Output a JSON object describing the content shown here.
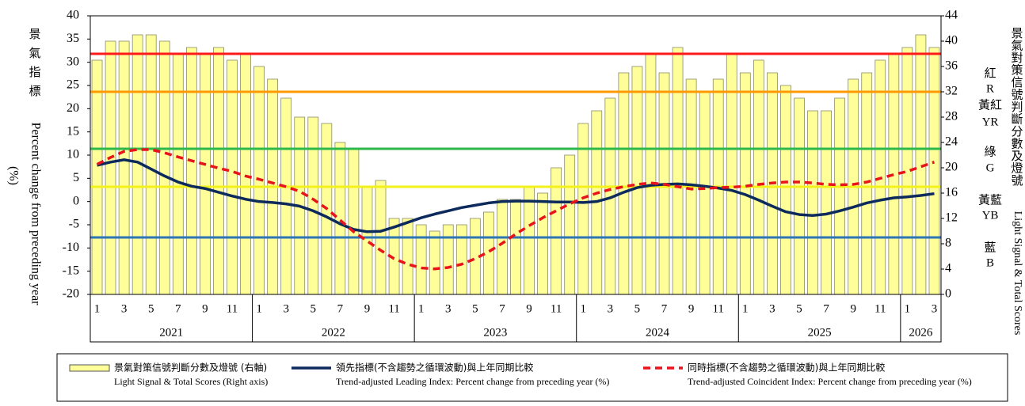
{
  "chart_data": {
    "type": "bar-line",
    "left_axis_title_cjk": "景氣指標",
    "left_axis_title": "Percent change from preceding year",
    "left_axis_unit": "(%)",
    "right_axis_title_cjk": "景氣對策信號判斷分數及燈號",
    "right_axis_title": "Light Signal & Total Scores",
    "categories": [
      "1",
      null,
      "3",
      null,
      "5",
      null,
      "7",
      null,
      "9",
      null,
      "11",
      null,
      "1",
      null,
      "3",
      null,
      "5",
      null,
      "7",
      null,
      "9",
      null,
      "11",
      null,
      "1",
      null,
      "3",
      null,
      "5",
      null,
      "7",
      null,
      "9",
      null,
      "11",
      null,
      "1",
      null,
      "3",
      null,
      "5",
      null,
      "7",
      null,
      "9",
      null,
      "11",
      null,
      "1",
      null,
      "3",
      null,
      "5",
      null,
      "7",
      null,
      "9",
      null,
      "11",
      null,
      "1",
      null,
      "3"
    ],
    "years": [
      "2021",
      "2022",
      "2023",
      "2024",
      "2025",
      "2026"
    ],
    "ylim": [
      -20,
      40
    ],
    "yticks": [
      -20,
      -15,
      -10,
      -5,
      0,
      5,
      10,
      15,
      20,
      25,
      30,
      35,
      40
    ],
    "y2lim": [
      0,
      44
    ],
    "y2ticks": [
      0,
      4,
      8,
      12,
      16,
      20,
      24,
      28,
      32,
      36,
      40,
      44
    ],
    "thresholds": [
      {
        "value": 38,
        "color": "#ff1a1a",
        "label": "紅",
        "code": "R"
      },
      {
        "value": 32,
        "color": "#ff9900",
        "label": "黃紅",
        "code": "YR"
      },
      {
        "value": 23,
        "color": "#2eb84b",
        "label": "綠",
        "code": "G"
      },
      {
        "value": 17,
        "color": "#f2f21a",
        "label": "黃藍",
        "code": "YB"
      },
      {
        "value": 9,
        "color": "#2e75b6",
        "label": "藍",
        "code": "B"
      }
    ],
    "series": [
      {
        "name": "景氣對策信號判斷分數及燈號 (右軸)",
        "name_en": "Light Signal & Total Scores (Right axis)",
        "kind": "bar",
        "axis": "y2",
        "color": "#ffff99",
        "values": [
          37,
          40,
          40,
          41,
          41,
          40,
          38,
          39,
          38,
          39,
          37,
          38,
          36,
          34,
          31,
          28,
          28,
          27,
          24,
          23,
          17,
          18,
          12,
          12,
          11,
          10,
          11,
          11,
          12,
          13,
          15,
          15,
          17,
          16,
          20,
          22,
          27,
          29,
          31,
          35,
          36,
          38,
          35,
          39,
          34,
          32,
          34,
          38,
          35,
          37,
          35,
          33,
          31,
          29,
          29,
          31,
          34,
          35,
          37,
          38,
          39,
          41,
          39
        ]
      },
      {
        "name": "領先指標(不含趨勢之循環波動)與上年同期比較",
        "name_en": "Trend-adjusted Leading Index: Percent change from preceding year (%)",
        "kind": "line",
        "color": "#0d2a5c",
        "values": [
          7.8,
          8.5,
          9,
          8.5,
          7,
          5.5,
          4.2,
          3.3,
          2.8,
          2,
          1.2,
          0.5,
          0,
          -0.2,
          -0.5,
          -1,
          -2,
          -3.3,
          -4.8,
          -6,
          -6.5,
          -6.4,
          -5.5,
          -4.5,
          -3.5,
          -2.7,
          -2,
          -1.3,
          -0.8,
          -0.3,
          0,
          0.1,
          0.1,
          0,
          -0.1,
          -0.1,
          -0.2,
          0,
          0.8,
          2,
          3,
          3.5,
          3.7,
          3.8,
          3.6,
          3.3,
          2.9,
          2.4,
          1.5,
          0.3,
          -1,
          -2.2,
          -2.8,
          -3,
          -2.7,
          -2,
          -1.2,
          -0.3,
          0.3,
          0.8,
          1,
          1.3,
          1.7
        ]
      },
      {
        "name": "同時指標(不含趨勢之循環波動)與上年同期比較",
        "name_en": "Trend-adjusted Coincident Index: Percent change from preceding year (%)",
        "kind": "dashed-line",
        "color": "#e8141c",
        "values": [
          8,
          9.5,
          10.8,
          11.2,
          11.2,
          10.5,
          9.6,
          8.8,
          8,
          7.2,
          6.5,
          5.5,
          4.8,
          4,
          3.2,
          2.2,
          0.5,
          -1.5,
          -4,
          -6.5,
          -8.5,
          -10.5,
          -12.3,
          -13.5,
          -14.3,
          -14.5,
          -14.2,
          -13.5,
          -12.3,
          -10.8,
          -9,
          -7,
          -5.2,
          -3.5,
          -2,
          -0.5,
          0.8,
          1.8,
          2.6,
          3.2,
          3.7,
          4,
          3.7,
          3.2,
          2.7,
          2.8,
          3,
          3.1,
          3.3,
          3.7,
          4,
          4.2,
          4.2,
          4,
          3.7,
          3.6,
          3.7,
          4.2,
          5,
          5.8,
          6.5,
          7.5,
          8.5
        ]
      }
    ]
  }
}
